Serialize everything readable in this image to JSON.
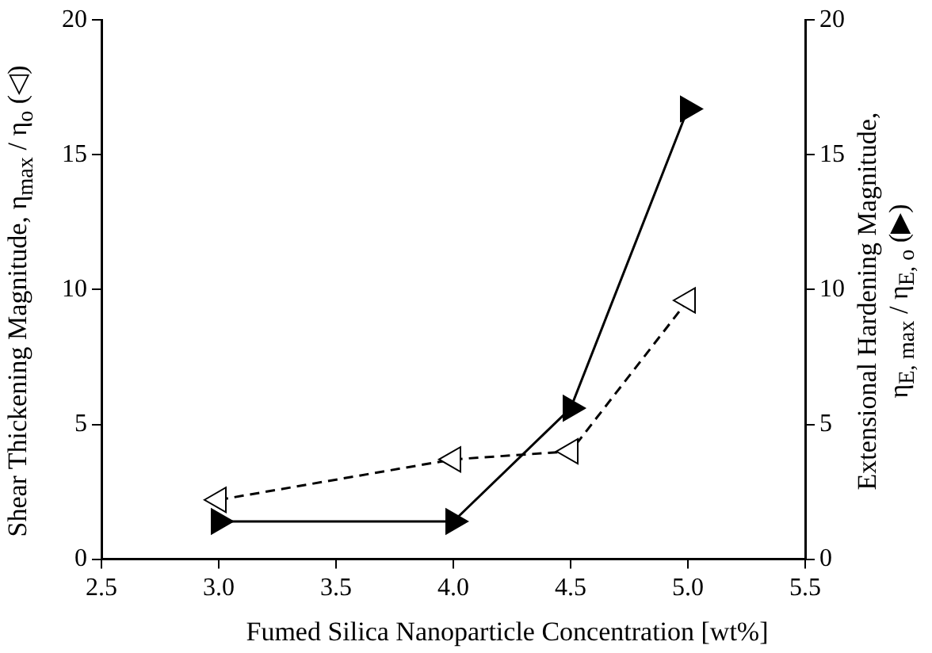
{
  "chart_data": {
    "type": "line",
    "xlabel": "Fumed Silica Nanoparticle Concentration [wt%]",
    "ylabel": "Shear Thickening Magnitude,  η$_{max}$ / η$_{o}$ (◁)",
    "y2label": "Extensional Hardening Magnitude, η$_{E, max}$ / η$_{E, o}$ (▶)",
    "x": [
      3.0,
      4.0,
      4.5,
      5.0
    ],
    "series": [
      {
        "color": "#000000",
        "values": [
          2.2,
          3.7,
          4.0,
          9.6
        ],
        "axis": "y",
        "line_style": "dashed",
        "marker": "triangle"
      },
      {
        "color": "#000000",
        "values": [
          1.4,
          1.4,
          5.6,
          16.7
        ],
        "axis": "y2",
        "line_style": "solid",
        "marker": "triangle"
      }
    ],
    "xlim": [
      2.5,
      5.5
    ],
    "xticks": [
      {
        "value": 2.5,
        "label": "2.5"
      },
      {
        "value": 3,
        "label": "3.0"
      },
      {
        "value": 3.5,
        "label": "3.5"
      },
      {
        "value": 4,
        "label": "4.0"
      },
      {
        "value": 4.5,
        "label": "4.5"
      },
      {
        "value": 5,
        "label": "5.0"
      },
      {
        "value": 5.5,
        "label": "5.5"
      }
    ],
    "ylim": [
      0,
      20
    ],
    "yticks": [
      0,
      5,
      10,
      15,
      20
    ],
    "y2lim": [
      0,
      20
    ],
    "y2ticks": [
      0,
      5,
      10,
      15,
      20
    ],
    "grid": false,
    "legend": false
  }
}
